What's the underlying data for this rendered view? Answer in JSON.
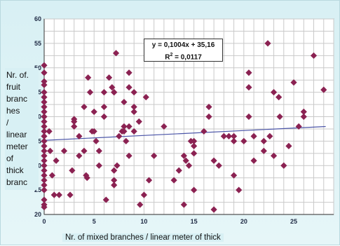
{
  "chart_data": {
    "type": "scatter",
    "xlabel": "Nr. of mixed branches / linear meter of thick",
    "ylabel_lines": [
      "Nr. of.",
      "fruit",
      "branc",
      "hes",
      "/",
      "linear",
      "meter",
      "of",
      "thick",
      "branc"
    ],
    "xlim": [
      0,
      29
    ],
    "ylim": [
      20,
      60
    ],
    "x_ticks": [
      0,
      5,
      10,
      15,
      20,
      25
    ],
    "y_ticks": [
      20,
      25,
      30,
      35,
      40,
      45,
      50,
      55,
      60
    ],
    "y_tick_labels": [
      "20",
      "25",
      "30",
      "35",
      "40",
      "45",
      "50",
      "55",
      "60"
    ],
    "grid": true,
    "marker_color": "#8b2252",
    "trendline": {
      "equation": "y = 0,1004x + 35,16",
      "r2_prefix": "R",
      "r2_sup": "2",
      "r2_value": " = 0,0117",
      "slope": 0.1004,
      "intercept": 35.16,
      "color": "#4b55a8"
    },
    "points": [
      [
        0,
        50.5
      ],
      [
        0,
        49
      ],
      [
        0,
        47.2
      ],
      [
        0,
        46.5
      ],
      [
        0,
        45
      ],
      [
        0,
        44
      ],
      [
        0,
        43
      ],
      [
        0,
        42
      ],
      [
        0,
        41
      ],
      [
        0,
        40
      ],
      [
        0,
        39
      ],
      [
        0,
        38
      ],
      [
        0,
        37
      ],
      [
        0,
        36
      ],
      [
        0,
        35
      ],
      [
        0,
        34
      ],
      [
        0,
        33
      ],
      [
        0,
        32
      ],
      [
        0,
        31
      ],
      [
        0,
        30
      ],
      [
        0,
        29
      ],
      [
        0,
        28
      ],
      [
        0,
        27
      ],
      [
        0,
        26
      ],
      [
        0,
        25
      ],
      [
        0,
        23
      ],
      [
        0,
        22
      ],
      [
        0,
        21.5
      ],
      [
        0.5,
        37
      ],
      [
        0.6,
        33
      ],
      [
        0.8,
        28
      ],
      [
        1,
        24
      ],
      [
        1.2,
        31
      ],
      [
        1.5,
        24
      ],
      [
        2,
        33
      ],
      [
        2.6,
        24
      ],
      [
        2.8,
        29
      ],
      [
        3,
        38
      ],
      [
        3,
        39.5
      ],
      [
        3,
        39
      ],
      [
        3.5,
        32
      ],
      [
        3.5,
        36
      ],
      [
        4,
        42
      ],
      [
        4,
        33
      ],
      [
        4.2,
        28
      ],
      [
        4.3,
        27.5
      ],
      [
        4.4,
        48
      ],
      [
        4.6,
        45
      ],
      [
        4.8,
        37
      ],
      [
        5,
        37
      ],
      [
        5,
        41
      ],
      [
        5.2,
        35
      ],
      [
        5.5,
        30
      ],
      [
        5.5,
        33
      ],
      [
        6,
        40
      ],
      [
        6,
        45
      ],
      [
        6,
        42
      ],
      [
        6.2,
        23
      ],
      [
        6.5,
        48
      ],
      [
        6.8,
        46
      ],
      [
        7,
        27
      ],
      [
        7,
        29
      ],
      [
        7,
        26
      ],
      [
        7,
        45
      ],
      [
        7,
        45
      ],
      [
        7.2,
        53
      ],
      [
        7.3,
        30
      ],
      [
        7.5,
        36
      ],
      [
        7.8,
        37
      ],
      [
        8,
        37
      ],
      [
        8,
        38
      ],
      [
        8,
        43
      ],
      [
        8.2,
        35
      ],
      [
        8.5,
        38
      ],
      [
        8.5,
        32
      ],
      [
        8.5,
        49
      ],
      [
        8.5,
        46
      ],
      [
        9,
        45
      ],
      [
        9,
        42
      ],
      [
        9,
        41
      ],
      [
        9,
        37
      ],
      [
        9.5,
        39
      ],
      [
        9.6,
        22
      ],
      [
        10,
        24
      ],
      [
        10.2,
        44
      ],
      [
        10.5,
        27
      ],
      [
        11,
        32
      ],
      [
        12,
        38
      ],
      [
        13,
        27
      ],
      [
        13.5,
        29
      ],
      [
        14,
        32
      ],
      [
        14,
        22
      ],
      [
        14.2,
        31
      ],
      [
        14.5,
        30
      ],
      [
        14.7,
        35
      ],
      [
        15,
        25
      ],
      [
        15,
        32.5
      ],
      [
        15,
        34
      ],
      [
        15,
        35
      ],
      [
        16,
        37
      ],
      [
        16.5,
        40
      ],
      [
        16.5,
        42
      ],
      [
        17,
        21
      ],
      [
        17,
        31
      ],
      [
        17.5,
        30
      ],
      [
        18,
        36
      ],
      [
        18.5,
        36
      ],
      [
        19,
        35
      ],
      [
        19,
        28
      ],
      [
        19,
        36
      ],
      [
        19.5,
        25
      ],
      [
        20,
        35
      ],
      [
        20.5,
        40
      ],
      [
        20.5,
        49
      ],
      [
        20.5,
        46
      ],
      [
        21,
        31
      ],
      [
        21,
        36
      ],
      [
        22,
        33
      ],
      [
        22,
        35
      ],
      [
        22.4,
        55
      ],
      [
        22.6,
        36
      ],
      [
        23,
        32
      ],
      [
        23,
        45
      ],
      [
        23.5,
        44
      ],
      [
        23.6,
        40
      ],
      [
        24,
        30
      ],
      [
        24.5,
        34
      ],
      [
        25,
        47
      ],
      [
        25.5,
        38
      ],
      [
        26,
        40
      ],
      [
        26,
        41
      ],
      [
        27,
        52.5
      ],
      [
        28,
        45.5
      ]
    ]
  }
}
